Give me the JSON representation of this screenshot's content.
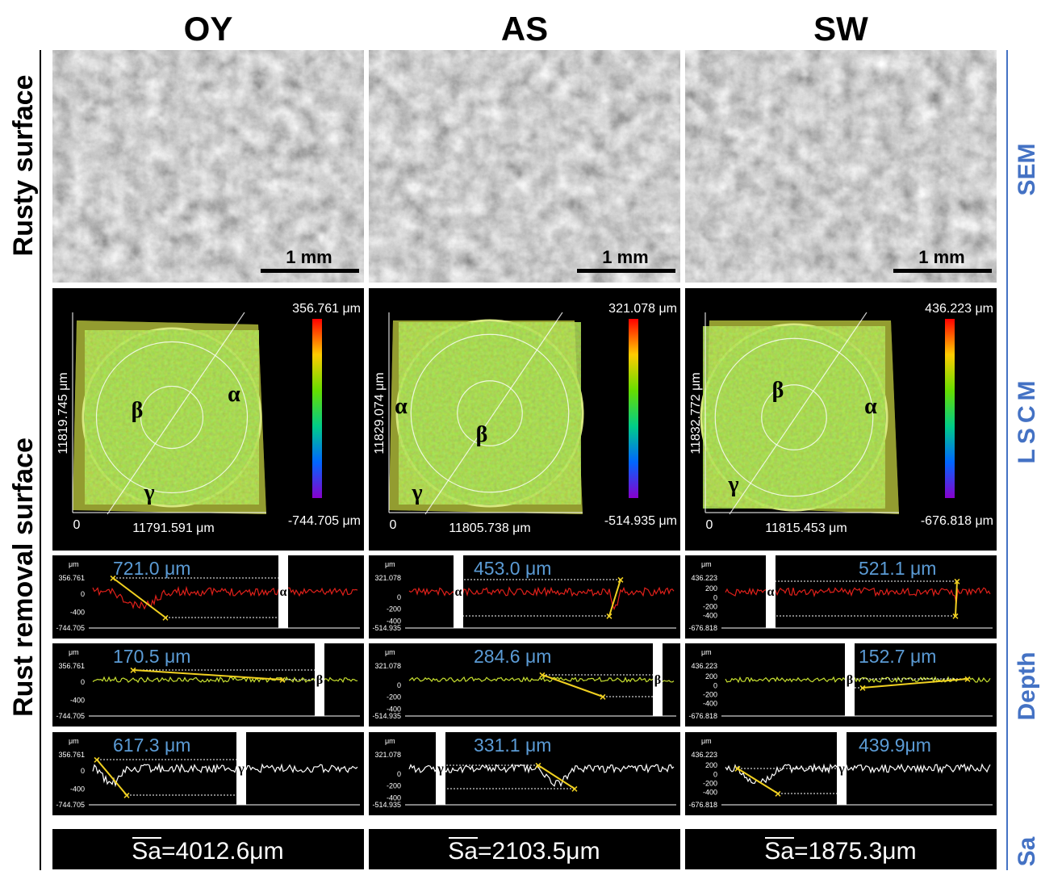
{
  "column_titles": [
    "OY",
    "AS",
    "SW"
  ],
  "row_labels": [
    "Rusty surface",
    "Rust removal surface"
  ],
  "side_labels": [
    "SEM",
    "LSCM",
    "Depth",
    "Sa"
  ],
  "panels": [
    {
      "sem_scale": "1 mm",
      "lscm": {
        "max": "356.761 μm",
        "min": "-744.705 μm",
        "x_length": "11791.591 μm",
        "y_length": "11819.745 μm",
        "origin": "0",
        "regions": [
          "α",
          "β",
          "γ"
        ]
      },
      "depth": {
        "unit": "μm",
        "ticks": [
          "356.761",
          "0",
          "-400",
          "-744.705"
        ],
        "profiles": [
          {
            "value": "721.0 μm",
            "region": "α"
          },
          {
            "value": "170.5 μm",
            "region": "β"
          },
          {
            "value": "617.3 μm",
            "region": "γ"
          }
        ]
      },
      "sa": {
        "symbol": "Sa",
        "value": "=4012.6μm"
      }
    },
    {
      "sem_scale": "1 mm",
      "lscm": {
        "max": "321.078 μm",
        "min": "-514.935 μm",
        "x_length": "11805.738 μm",
        "y_length": "11829.074 μm",
        "origin": "0",
        "regions": [
          "α",
          "β",
          "γ"
        ]
      },
      "depth": {
        "unit": "μm",
        "ticks": [
          "321.078",
          "0",
          "-200",
          "-400",
          "-514.935"
        ],
        "profiles": [
          {
            "value": "453.0 μm",
            "region": "α"
          },
          {
            "value": "284.6 μm",
            "region": "β"
          },
          {
            "value": "331.1 μm",
            "region": "γ"
          }
        ]
      },
      "sa": {
        "symbol": "Sa",
        "value": "=2103.5μm"
      }
    },
    {
      "sem_scale": "1 mm",
      "lscm": {
        "max": "436.223 μm",
        "min": "-676.818 μm",
        "x_length": "11815.453 μm",
        "y_length": "11832.772 μm",
        "origin": "0",
        "regions": [
          "α",
          "β",
          "γ"
        ]
      },
      "depth": {
        "unit": "μm",
        "ticks": [
          "436.223",
          "200",
          "0",
          "-200",
          "-400",
          "-676.818"
        ],
        "profiles": [
          {
            "value": "521.1 μm",
            "region": "α"
          },
          {
            "value": "152.7 μm",
            "region": "β"
          },
          {
            "value": "439.9μm",
            "region": "γ"
          }
        ]
      },
      "sa": {
        "symbol": "Sa",
        "value": "=1875.3μm"
      }
    }
  ]
}
